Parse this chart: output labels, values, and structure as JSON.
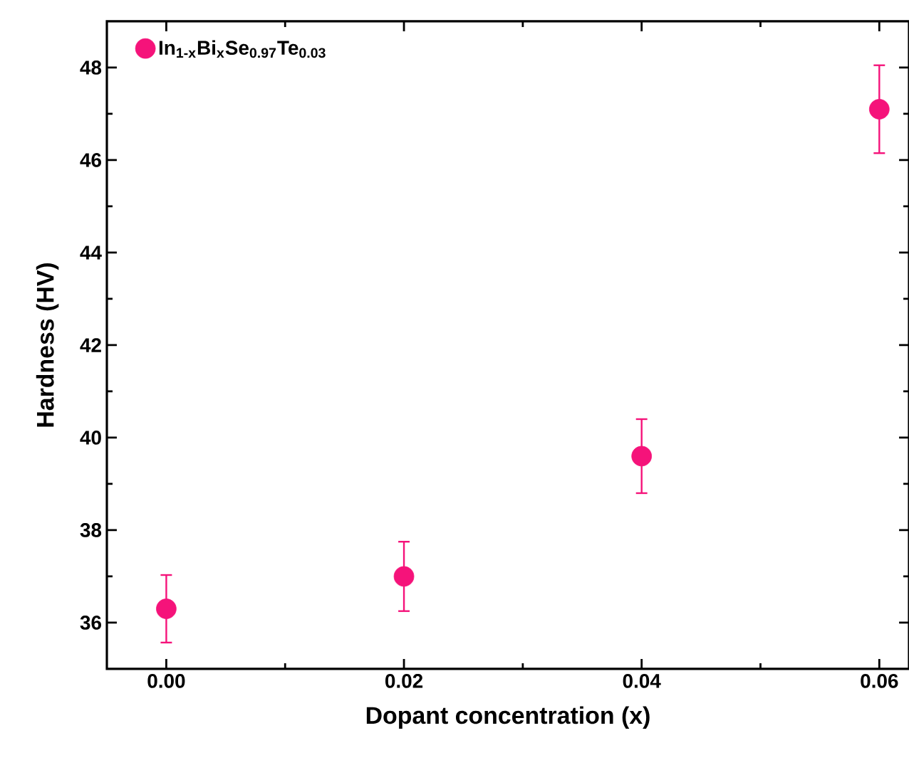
{
  "chart_data": {
    "type": "scatter",
    "xlabel": "Dopant concentration (x)",
    "ylabel": "Hardness (HV)",
    "series": [
      {
        "name": "In$_{1-x}$Bi$_{x}$Se$_{0.97}$Te$_{0.03}$",
        "color": "#f5137a",
        "x": [
          0,
          0.02,
          0.04,
          0.06
        ],
        "values": [
          36.3,
          37.0,
          39.6,
          47.1
        ],
        "errors": [
          0.73,
          0.75,
          0.8,
          0.95
        ]
      }
    ],
    "xlim": [
      -0.005,
      0.0625
    ],
    "ylim": [
      35,
      49
    ],
    "xticks": [
      {
        "value": 0,
        "label": "0.00"
      },
      {
        "value": 0.02,
        "label": "0.02"
      },
      {
        "value": 0.04,
        "label": "0.04"
      },
      {
        "value": 0.06,
        "label": "0.06"
      }
    ],
    "yticks": [
      36,
      38,
      40,
      42,
      44,
      46,
      48
    ],
    "legend": "top left",
    "marker": "circle",
    "grid": false
  }
}
